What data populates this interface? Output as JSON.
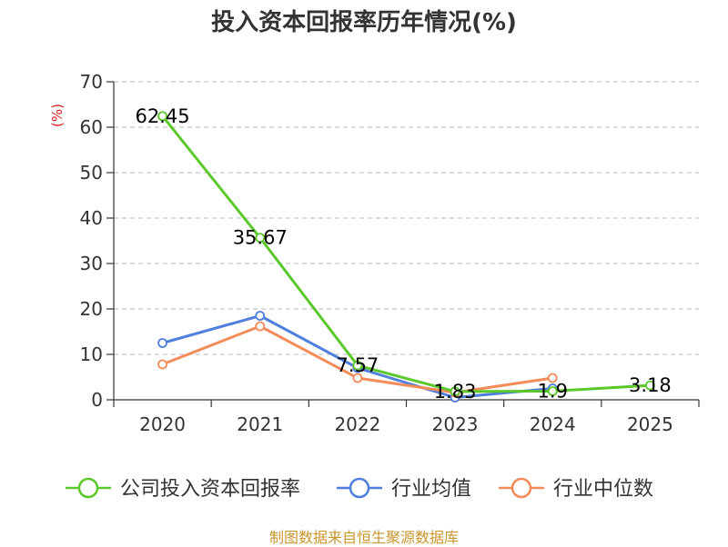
{
  "chart_data": {
    "type": "line",
    "title": "投入资本回报率历年情况(%)",
    "ylabel": "(%)",
    "xlabel": "",
    "ylim": [
      0,
      70
    ],
    "yticks": [
      0,
      10,
      20,
      30,
      40,
      50,
      60,
      70
    ],
    "categories": [
      "2020",
      "2021",
      "2022",
      "2023",
      "2024",
      "2025"
    ],
    "grid": true,
    "legend_position": "bottom",
    "series": [
      {
        "name": "公司投入资本回报率",
        "color": "#5ac82a",
        "values": [
          62.45,
          35.67,
          7.57,
          1.83,
          1.9,
          3.18
        ],
        "labels": [
          "62.45",
          "35.67",
          "7.57",
          "1.83",
          "1.9",
          "3.18"
        ]
      },
      {
        "name": "行业均值",
        "color": "#4f7fdc",
        "values": [
          12.5,
          18.5,
          7.0,
          0.5,
          2.5,
          null
        ]
      },
      {
        "name": "行业中位数",
        "color": "#f48c5a",
        "values": [
          7.8,
          16.2,
          4.8,
          1.6,
          4.8,
          null
        ]
      }
    ]
  },
  "footer": {
    "source": "制图数据来自恒生聚源数据库"
  }
}
